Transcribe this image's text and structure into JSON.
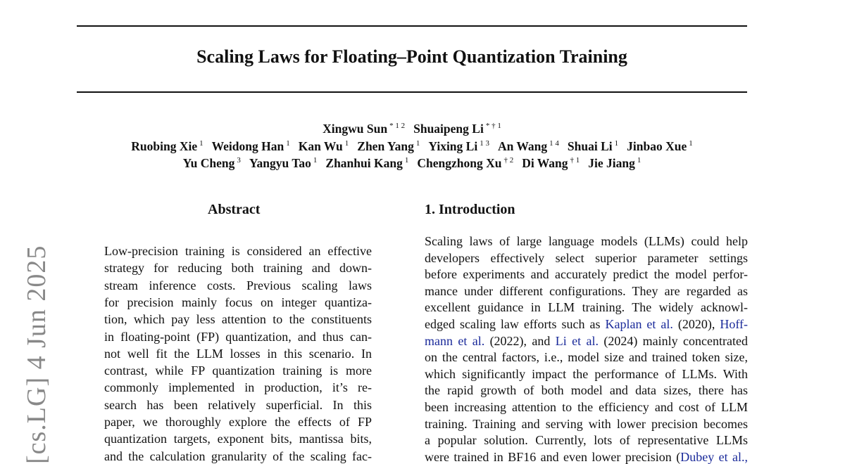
{
  "title": "Scaling Laws for Floating–Point Quantization Training",
  "authors": [
    [
      {
        "n": "Xingwu Sun",
        "s": "* 1 2"
      },
      {
        "n": "Shuaipeng Li",
        "s": "* † 1"
      }
    ],
    [
      {
        "n": "Ruobing Xie",
        "s": "1"
      },
      {
        "n": "Weidong Han",
        "s": "1"
      },
      {
        "n": "Kan Wu",
        "s": "1"
      },
      {
        "n": "Zhen Yang",
        "s": "1"
      },
      {
        "n": "Yixing Li",
        "s": "1 3"
      },
      {
        "n": "An Wang",
        "s": "1 4"
      },
      {
        "n": "Shuai Li",
        "s": "1"
      },
      {
        "n": "Jinbao Xue",
        "s": "1"
      }
    ],
    [
      {
        "n": "Yu Cheng",
        "s": "3"
      },
      {
        "n": "Yangyu Tao",
        "s": "1"
      },
      {
        "n": "Zhanhui Kang",
        "s": "1"
      },
      {
        "n": "Chengzhong Xu",
        "s": "† 2"
      },
      {
        "n": "Di Wang",
        "s": "† 1"
      },
      {
        "n": "Jie Jiang",
        "s": "1"
      }
    ]
  ],
  "abstract": {
    "heading": "Abstract",
    "lines": [
      "Low-precision training is considered an effective",
      "strategy for reducing both training and down-",
      "stream inference costs.  Previous scaling laws",
      "for precision mainly focus on integer quantiza-",
      "tion, which pay less attention to the constituents",
      "in floating-point (FP) quantization, and thus can-",
      "not well fit the LLM losses in this scenario.  In",
      "contrast, while FP quantization training is more",
      "commonly implemented in production, it’s re-",
      "search has been relatively superficial.  In this",
      "paper, we thoroughly explore the effects of FP",
      "quantization targets, exponent bits, mantissa bits,",
      "and the calculation granularity of the scaling fac-"
    ]
  },
  "introduction": {
    "heading": "1. Introduction",
    "lines": [
      [
        {
          "t": "Scaling laws of large language models (LLMs) could help"
        }
      ],
      [
        {
          "t": "developers effectively select superior parameter settings"
        }
      ],
      [
        {
          "t": "before experiments and accurately predict the model perfor-"
        }
      ],
      [
        {
          "t": "mance under different configurations. They are regarded as"
        }
      ],
      [
        {
          "t": "excellent guidance in LLM training. The widely acknowl-"
        }
      ],
      [
        {
          "t": "edged scaling law efforts such as "
        },
        {
          "t": "Kaplan et al.",
          "link": true
        },
        {
          "t": " (2020), "
        },
        {
          "t": "Hoff-",
          "link": true
        }
      ],
      [
        {
          "t": "mann et al.",
          "link": true
        },
        {
          "t": " (2022), and "
        },
        {
          "t": "Li et al.",
          "link": true
        },
        {
          "t": " (2024) mainly concentrated"
        }
      ],
      [
        {
          "t": "on the central factors, i.e., model size and trained token size,"
        }
      ],
      [
        {
          "t": "which significantly impact the performance of LLMs. With"
        }
      ],
      [
        {
          "t": "the rapid growth of both model and data sizes, there has"
        }
      ],
      [
        {
          "t": "been increasing attention to the efficiency and cost of LLM"
        }
      ],
      [
        {
          "t": "training. Training and serving with lower precision becomes"
        }
      ],
      [
        {
          "t": "a popular solution. Currently, lots of representative LLMs"
        }
      ],
      [
        {
          "t": "were trained in BF16 and even lower precision ("
        },
        {
          "t": "Dubey et al.,",
          "link": true
        }
      ]
    ]
  },
  "arxiv_stamp": "[cs.LG]  4 Jun 2025",
  "colors": {
    "link": "#1a2a9a",
    "stamp": "#888888"
  }
}
